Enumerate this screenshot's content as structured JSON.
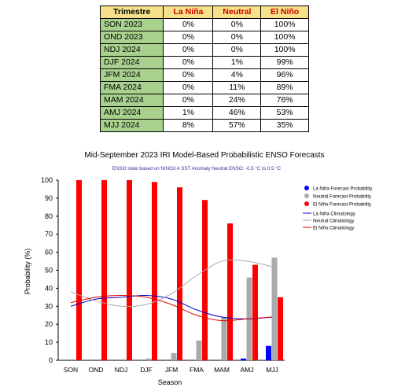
{
  "table": {
    "headers": [
      "Trimestre",
      "La Niña",
      "Neutral",
      "El Niño"
    ],
    "rows": [
      [
        "SON  2023",
        "0%",
        "0%",
        "100%"
      ],
      [
        "OND  2023",
        "0%",
        "0%",
        "100%"
      ],
      [
        "NDJ  2024",
        "0%",
        "0%",
        "100%"
      ],
      [
        "DJF  2024",
        "0%",
        "1%",
        "99%"
      ],
      [
        "JFM  2024",
        "0%",
        "4%",
        "96%"
      ],
      [
        "FMA  2024",
        "0%",
        "11%",
        "89%"
      ],
      [
        "MAM  2024",
        "0%",
        "24%",
        "76%"
      ],
      [
        "AMJ  2024",
        "1%",
        "46%",
        "53%"
      ],
      [
        "MJJ  2024",
        "8%",
        "57%",
        "35%"
      ]
    ]
  },
  "chart_data": {
    "type": "bar",
    "title": "Mid-September 2023 IRI Model-Based Probabilistic ENSO Forecasts",
    "subtitle": "ENSO state based on NINO3.4 SST Anomaly Neutral ENSO: -0.5 °C to 0.5 °C",
    "xlabel": "Season",
    "ylabel": "Probability (%)",
    "ylim": [
      0,
      100
    ],
    "yticks": [
      0,
      10,
      20,
      30,
      40,
      50,
      60,
      70,
      80,
      90,
      100
    ],
    "grid": false,
    "legend_position": "top-right",
    "categories": [
      "SON",
      "OND",
      "NDJ",
      "DJF",
      "JFM",
      "FMA",
      "MAM",
      "AMJ",
      "MJJ"
    ],
    "series": [
      {
        "name": "La Niña Forecast Probability",
        "color": "#0000ff",
        "values": [
          0,
          0,
          0,
          0,
          0,
          0,
          0,
          1,
          8
        ]
      },
      {
        "name": "Neutral Forecast Probability",
        "color": "#aaaaaa",
        "values": [
          0,
          0,
          0,
          1,
          4,
          11,
          24,
          46,
          57
        ]
      },
      {
        "name": "El Niño Forecast Probability",
        "color": "#ff0000",
        "values": [
          100,
          100,
          100,
          99,
          96,
          89,
          76,
          53,
          35
        ]
      }
    ],
    "climatology": [
      {
        "name": "La Niña Climatology",
        "color": "#0000cc",
        "values": [
          30,
          34,
          35,
          36,
          34,
          28,
          24,
          23,
          24
        ]
      },
      {
        "name": "Neutral Climatology",
        "color": "#aaaaaa",
        "values": [
          38,
          33,
          30,
          31,
          37,
          47,
          55,
          55,
          52
        ]
      },
      {
        "name": "El Niño Climatology",
        "color": "#dd0000",
        "values": [
          32,
          35,
          36,
          35,
          31,
          25,
          22,
          23,
          24
        ]
      }
    ]
  }
}
